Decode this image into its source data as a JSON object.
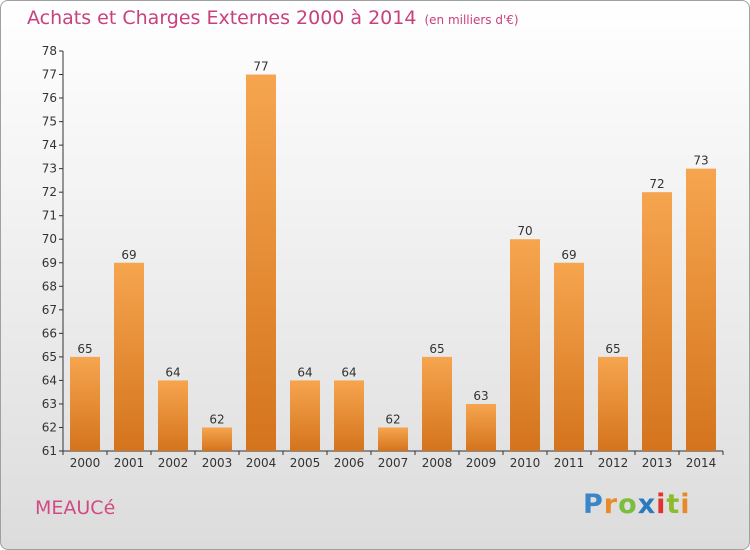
{
  "header": {
    "title": "Achats et Charges Externes 2000 à 2014",
    "subtitle": "(en milliers d'€)"
  },
  "footer": {
    "commune": "MEAUCé"
  },
  "logo": {
    "letters": [
      {
        "ch": "P",
        "color": "#3a86c8"
      },
      {
        "ch": "r",
        "color": "#e98a2a"
      },
      {
        "ch": "o",
        "color": "#7bbd3c"
      },
      {
        "ch": "x",
        "color": "#2a7ac0"
      },
      {
        "ch": "i",
        "color": "#e0332b"
      },
      {
        "ch": "t",
        "color": "#8dbb2c"
      },
      {
        "ch": "i",
        "color": "#e98a2a"
      }
    ]
  },
  "chart_data": {
    "type": "bar",
    "title": "Achats et Charges Externes 2000 à 2014",
    "subtitle": "(en milliers d'€)",
    "categories": [
      "2000",
      "2001",
      "2002",
      "2003",
      "2004",
      "2005",
      "2006",
      "2007",
      "2008",
      "2009",
      "2010",
      "2011",
      "2012",
      "2013",
      "2014"
    ],
    "values": [
      65,
      69,
      64,
      62,
      77,
      64,
      64,
      62,
      65,
      63,
      70,
      69,
      65,
      72,
      73
    ],
    "ylim": [
      61,
      78
    ],
    "yticks": [
      61,
      62,
      63,
      64,
      65,
      66,
      67,
      68,
      69,
      70,
      71,
      72,
      73,
      74,
      75,
      76,
      77,
      78
    ],
    "grid": false,
    "legend": "none",
    "bar_color_light": "#f6a54f",
    "bar_color_dark": "#d4741d"
  }
}
